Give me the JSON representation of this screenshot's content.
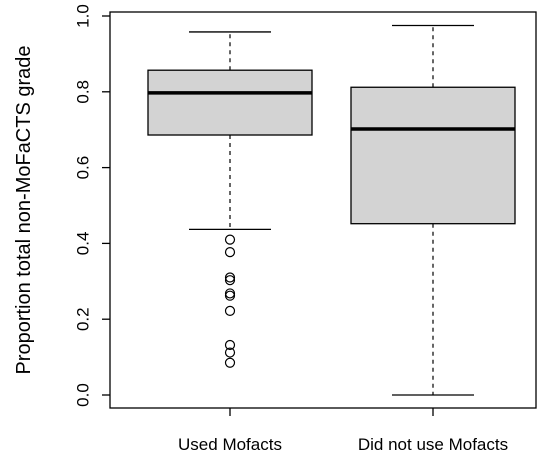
{
  "chart_data": {
    "type": "boxplot",
    "title": "",
    "xlabel": "",
    "ylabel": "Proportion total non-MoFaCTS grade",
    "ylim": [
      0.0,
      1.0
    ],
    "yticks": [
      "0.0",
      "0.2",
      "0.4",
      "0.6",
      "0.8",
      "1.0"
    ],
    "grid": false,
    "legend": "none",
    "box_fill": "#d3d3d3",
    "categories": [
      "Used Mofacts",
      "Did not use Mofacts"
    ],
    "boxes": [
      {
        "label": "Used Mofacts",
        "whisker_low": 0.437,
        "q1": 0.686,
        "median": 0.797,
        "q3": 0.857,
        "whisker_high": 0.958,
        "outliers": [
          0.41,
          0.377,
          0.31,
          0.303,
          0.268,
          0.262,
          0.222,
          0.132,
          0.112,
          0.085
        ]
      },
      {
        "label": "Did not use Mofacts",
        "whisker_low": 0.0,
        "q1": 0.452,
        "median": 0.702,
        "q3": 0.812,
        "whisker_high": 0.975,
        "outliers": []
      }
    ]
  }
}
